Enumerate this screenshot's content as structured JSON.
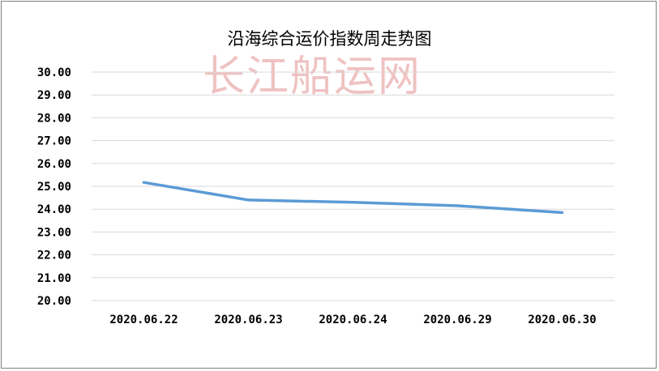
{
  "chart_data": {
    "type": "line",
    "title": "沿海综合运价指数周走势图",
    "watermark": "长江船运网",
    "categories": [
      "2020.06.22",
      "2020.06.23",
      "2020.06.24",
      "2020.06.29",
      "2020.06.30"
    ],
    "series": [
      {
        "values": [
          25.17,
          24.4,
          24.3,
          24.15,
          23.85
        ],
        "color": "#5b9bd5"
      }
    ],
    "ylim": [
      20,
      30
    ],
    "yticks": [
      "20.00",
      "21.00",
      "22.00",
      "23.00",
      "24.00",
      "25.00",
      "26.00",
      "27.00",
      "28.00",
      "29.00",
      "30.00"
    ],
    "grid": true,
    "xlabel": "",
    "ylabel": ""
  }
}
